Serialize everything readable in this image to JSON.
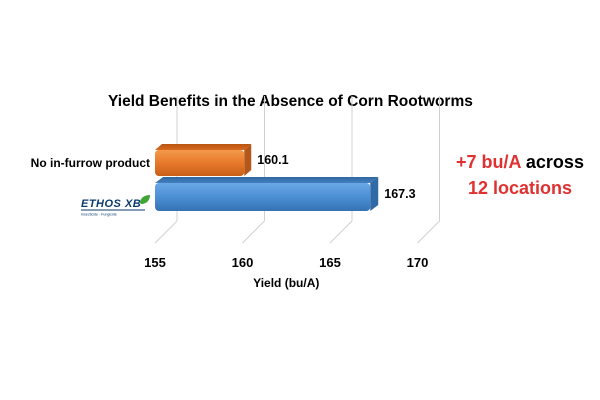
{
  "chart_data": {
    "type": "bar",
    "orientation": "horizontal",
    "style": "3d",
    "title": "Yield Benefits in the Absence of Corn Rootworms",
    "xlabel": "Yield (bu/A)",
    "ylabel": "",
    "xlim": [
      155,
      170
    ],
    "ticks": [
      155,
      160,
      165,
      170
    ],
    "grid": true,
    "categories": [
      "No in-furrow product",
      "ETHOS XB"
    ],
    "values": [
      160.1,
      167.3
    ],
    "data_labels": [
      "160.1",
      "167.3"
    ],
    "colors": [
      "#e8792b",
      "#4b8fd4"
    ]
  },
  "logo": {
    "text": "ETHOS XB",
    "tagline": "Insecticide · Fungicide"
  },
  "callout": {
    "line1_red": "+7 bu/A",
    "line1_black": "across",
    "line2_red": "12 locations"
  }
}
